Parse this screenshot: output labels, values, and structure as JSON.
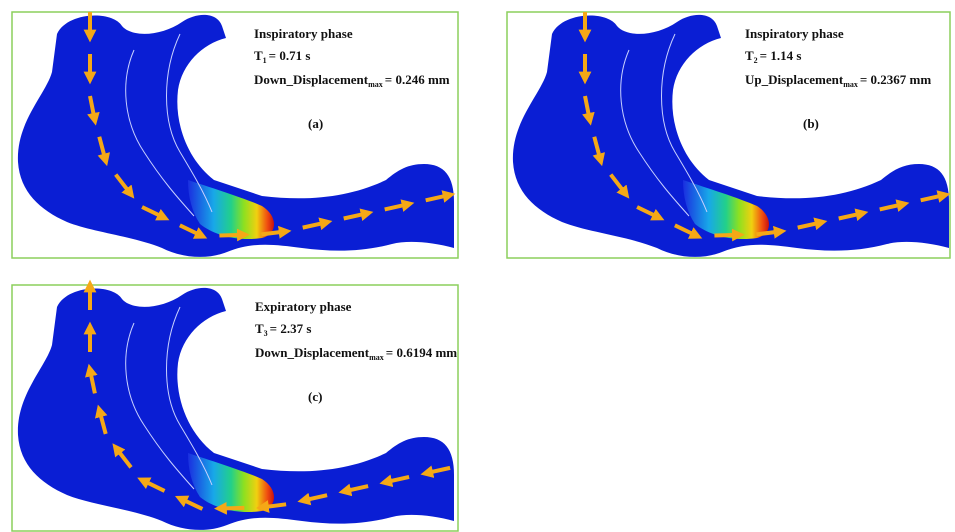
{
  "panels": [
    {
      "label": "(a)",
      "phase": "Inspiratory phase",
      "time_symbol": "T",
      "time_index": "1",
      "time_value": "= 0.71 s",
      "displacement_name": "Down_Displacement",
      "displacement_sub": "max",
      "displacement_value": "= 0.246 mm"
    },
    {
      "label": "(b)",
      "phase": "Inspiratory phase",
      "time_symbol": "T",
      "time_index": "2",
      "time_value": "= 1.14 s",
      "displacement_name": "Up_Displacement",
      "displacement_sub": "max",
      "displacement_value": "= 0.2367 mm"
    },
    {
      "label": "(c)",
      "phase": "Expiratory phase",
      "time_symbol": "T",
      "time_index": "3",
      "time_value": "= 2.37 s",
      "displacement_name": "Down_Displacement",
      "displacement_sub": "max",
      "displacement_value": "= 0.6194 mm"
    }
  ]
}
